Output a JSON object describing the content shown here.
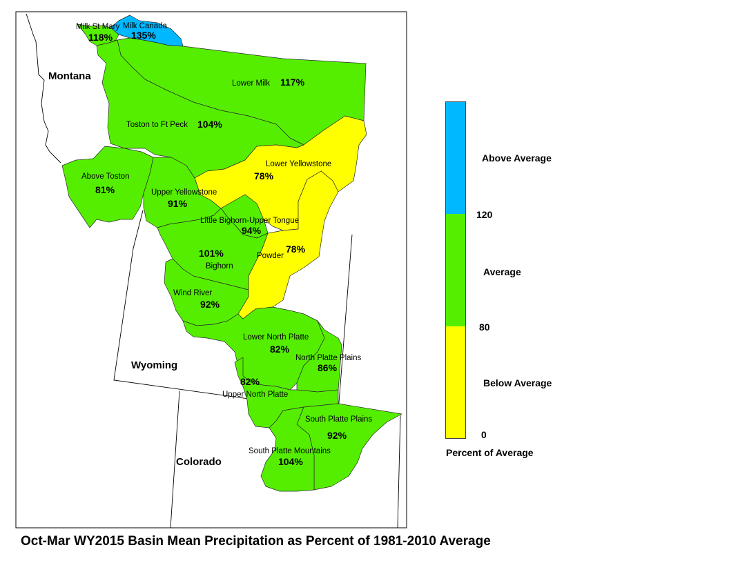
{
  "title": "Oct-Mar WY2015 Basin Mean Precipitation as Percent of 1981-2010 Average",
  "colors": {
    "above": "#00b8ff",
    "average": "#55ee00",
    "below": "#ffff00"
  },
  "states": [
    "Montana",
    "Wyoming",
    "Colorado"
  ],
  "basins": [
    {
      "name": "Milk St Mary",
      "percent": "118%",
      "category": "average"
    },
    {
      "name": "Milk Canada",
      "percent": "135%",
      "category": "above"
    },
    {
      "name": "Lower Milk",
      "percent": "117%",
      "category": "average"
    },
    {
      "name": "Toston to Ft Peck",
      "percent": "104%",
      "category": "average"
    },
    {
      "name": "Above Toston",
      "percent": "81%",
      "category": "average"
    },
    {
      "name": "Lower Yellowstone",
      "percent": "78%",
      "category": "below"
    },
    {
      "name": "Upper Yellowstone",
      "percent": "91%",
      "category": "average"
    },
    {
      "name": "Little Bighorn-Upper Tongue",
      "percent": "94%",
      "category": "average"
    },
    {
      "name": "Powder",
      "percent": "78%",
      "category": "below"
    },
    {
      "name": "Bighorn",
      "percent": "101%",
      "category": "average"
    },
    {
      "name": "Wind River",
      "percent": "92%",
      "category": "average"
    },
    {
      "name": "Lower North Platte",
      "percent": "82%",
      "category": "average"
    },
    {
      "name": "North Platte Plains",
      "percent": "86%",
      "category": "average"
    },
    {
      "name": "Upper North Platte",
      "percent": "82%",
      "category": "average"
    },
    {
      "name": "South Platte Plains",
      "percent": "92%",
      "category": "average"
    },
    {
      "name": "South Platte Mountains",
      "percent": "104%",
      "category": "average"
    }
  ],
  "legend": {
    "title": "Percent of Average",
    "classes": [
      {
        "label": "Above Average",
        "color": "#00b8ff"
      },
      {
        "label": "Average",
        "color": "#55ee00"
      },
      {
        "label": "Below Average",
        "color": "#ffff00"
      }
    ],
    "breaks": [
      "120",
      "80",
      "0"
    ]
  }
}
